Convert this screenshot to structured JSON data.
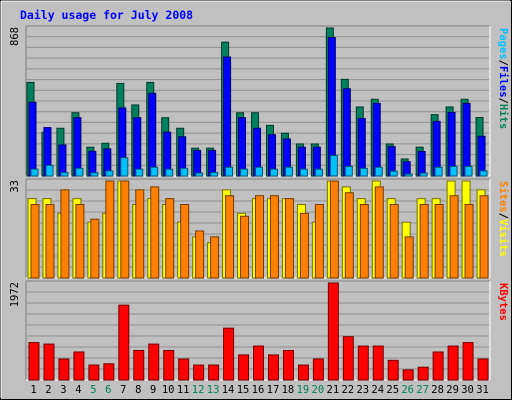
{
  "chart_data": {
    "type": "bar",
    "title": "Daily usage for July 2008",
    "days": [
      "1",
      "2",
      "3",
      "4",
      "5",
      "6",
      "7",
      "8",
      "9",
      "10",
      "11",
      "12",
      "13",
      "14",
      "15",
      "16",
      "17",
      "18",
      "19",
      "20",
      "21",
      "22",
      "23",
      "24",
      "25",
      "26",
      "27",
      "28",
      "29",
      "30",
      "31"
    ],
    "weekend_days": [
      5,
      6,
      12,
      13,
      19,
      20,
      26,
      27
    ],
    "colors": {
      "hits": "#00805c",
      "files": "#0000ff",
      "pages": "#00c0ff",
      "visits": "#ffff00",
      "sites": "#ff8000",
      "kbytes": "#ff0000",
      "title": "#0000ff",
      "weekday_label": "#000000",
      "weekend_label": "#00805c"
    },
    "panels": [
      {
        "id": "top",
        "max_label": "868",
        "max": 868,
        "legend": [
          {
            "text": "Pages",
            "color": "#00c0ff"
          },
          {
            "text": "/",
            "color": "#000000"
          },
          {
            "text": "Files",
            "color": "#0000ff"
          },
          {
            "text": "/",
            "color": "#000000"
          },
          {
            "text": "Hits",
            "color": "#00805c"
          }
        ],
        "series": [
          {
            "name": "Hits",
            "color": "#00805c",
            "values": [
              549,
              257,
              280,
              371,
              169,
              192,
              543,
              417,
              549,
              342,
              280,
              163,
              163,
              785,
              371,
              371,
              297,
              251,
              188,
              188,
              868,
              567,
              405,
              450,
              188,
              100,
              169,
              360,
              405,
              450,
              343
            ]
          },
          {
            "name": "Files",
            "color": "#0000ff",
            "values": [
              432,
              284,
              182,
              342,
              145,
              159,
              399,
              342,
              485,
              257,
              230,
              150,
              150,
              698,
              342,
              280,
              242,
              217,
              169,
              169,
              812,
              512,
              337,
              426,
              172,
              84,
              144,
              320,
              373,
              426,
              233
            ]
          },
          {
            "name": "Pages",
            "color": "#00c0ff",
            "values": [
              40,
              62,
              20,
              45,
              19,
              30,
              107,
              40,
              51,
              40,
              45,
              17,
              20,
              51,
              40,
              51,
              40,
              51,
              40,
              40,
              120,
              56,
              45,
              51,
              28,
              11,
              17,
              51,
              56,
              56,
              30
            ]
          }
        ]
      },
      {
        "id": "middle",
        "max_label": "33",
        "max": 33,
        "legend": [
          {
            "text": "Sites",
            "color": "#ff8000"
          },
          {
            "text": "/",
            "color": "#000000"
          },
          {
            "text": "Visits",
            "color": "#ffff00"
          }
        ],
        "series": [
          {
            "name": "Visits",
            "color": "#ffff00",
            "values": [
              27,
              27,
              22,
              27,
              19,
              22,
              33,
              25,
              27,
              25,
              19,
              14,
              12,
              30,
              22,
              27,
              27,
              27,
              25,
              19,
              33,
              31,
              27,
              33,
              27,
              19,
              27,
              27,
              33,
              33,
              30
            ]
          },
          {
            "name": "Sites",
            "color": "#ff8000",
            "values": [
              25,
              25,
              30,
              25,
              20,
              33,
              33,
              30,
              31,
              27,
              25,
              16,
              14,
              28,
              21,
              28,
              28,
              27,
              22,
              25,
              33,
              29,
              25,
              31,
              25,
              14,
              25,
              25,
              28,
              25,
              28
            ]
          }
        ]
      },
      {
        "id": "bottom",
        "max_label": "1972",
        "max": 1972,
        "legend": [
          {
            "text": "KBytes",
            "color": "#ff0000"
          }
        ],
        "series": [
          {
            "name": "KBytes",
            "color": "#ff0000",
            "values": [
              761,
              730,
              427,
              570,
              304,
              330,
              1522,
              600,
              730,
              600,
              427,
              304,
              304,
              1054,
              510,
              690,
              510,
              600,
              304,
              427,
              1972,
              880,
              690,
              690,
              400,
              205,
              260,
              570,
              690,
              761,
              427
            ]
          }
        ]
      }
    ]
  }
}
